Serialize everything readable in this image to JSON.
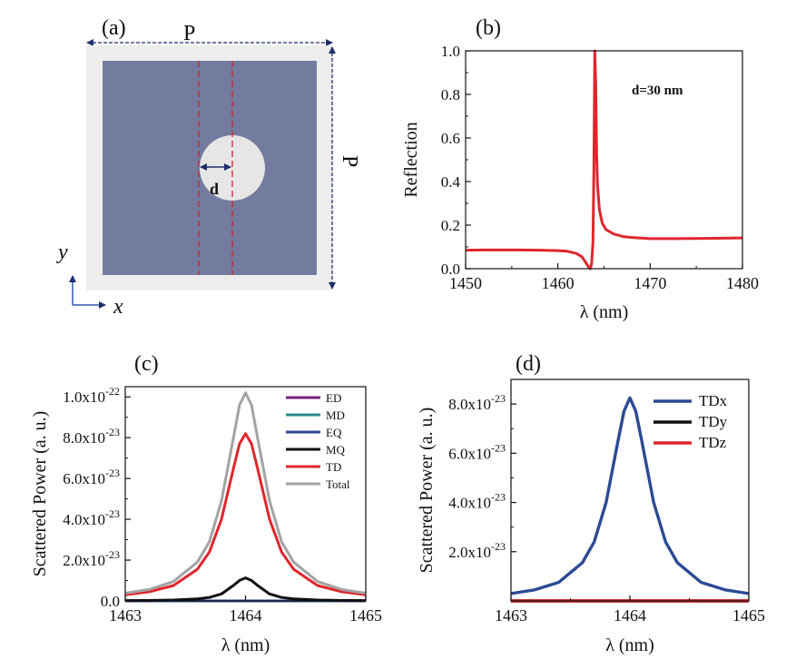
{
  "panels": {
    "a": {
      "label": "(a)",
      "period_label": "P",
      "diameter_label": "d",
      "period_side_label": "P",
      "axis_x": "x",
      "axis_y": "y"
    },
    "b": {
      "label": "(b)"
    },
    "c": {
      "label": "(c)"
    },
    "d": {
      "label": "(d)"
    }
  },
  "chart_data": [
    {
      "id": "b",
      "type": "line",
      "ylabel": "Reflection",
      "xlabel": "λ (nm)",
      "annotation": "d=30 nm",
      "xlim": [
        1450,
        1480
      ],
      "ylim": [
        0,
        1.0
      ],
      "xticks": [
        1450,
        1460,
        1470,
        1480
      ],
      "xtick_labels": [
        "1450",
        "1460",
        "1470",
        "1480"
      ],
      "yticks": [
        0,
        0.2,
        0.4,
        0.6,
        0.8,
        1.0
      ],
      "ytick_labels": [
        "0.0",
        "0.2",
        "0.4",
        "0.6",
        "0.8",
        "1.0"
      ],
      "series": [
        {
          "color": "#e0262d",
          "x": [
            1450,
            1452,
            1454,
            1456,
            1458,
            1460,
            1461,
            1462,
            1462.6,
            1463.0,
            1463.3,
            1463.5,
            1463.65,
            1463.8,
            1463.9,
            1464.0,
            1464.1,
            1464.2,
            1464.3,
            1464.5,
            1464.8,
            1465.2,
            1466,
            1467,
            1468,
            1470,
            1473,
            1476,
            1480
          ],
          "y": [
            0.085,
            0.086,
            0.086,
            0.086,
            0.085,
            0.083,
            0.08,
            0.07,
            0.055,
            0.03,
            0.01,
            0.0,
            0.02,
            0.12,
            0.45,
            1.0,
            0.85,
            0.52,
            0.38,
            0.27,
            0.21,
            0.18,
            0.16,
            0.148,
            0.143,
            0.138,
            0.138,
            0.139,
            0.141
          ]
        }
      ]
    },
    {
      "id": "c",
      "type": "line",
      "ylabel": "Scattered Power (a. u.)",
      "xlabel": "λ (nm)",
      "xlim": [
        1463,
        1465
      ],
      "ylim": [
        0,
        1.05e-22
      ],
      "xticks": [
        1463,
        1464,
        1465
      ],
      "xtick_labels": [
        "1463",
        "1464",
        "1465"
      ],
      "yticks": [
        0,
        2e-23,
        4e-23,
        6e-23,
        8e-23,
        1e-22
      ],
      "ytick_labels": [
        {
          "base": "0.0",
          "exp": ""
        },
        {
          "base": "2.0x10",
          "exp": "-23"
        },
        {
          "base": "4.0x10",
          "exp": "-23"
        },
        {
          "base": "6.0x10",
          "exp": "-23"
        },
        {
          "base": "8.0x10",
          "exp": "-23"
        },
        {
          "base": "1.0x10",
          "exp": "-22"
        }
      ],
      "legend_position": "top-right",
      "series": [
        {
          "name": "ED",
          "color": "#7b1f82",
          "x": [
            1463,
            1465
          ],
          "y": [
            0,
            0
          ]
        },
        {
          "name": "MD",
          "color": "#2b8a86",
          "x": [
            1463,
            1465
          ],
          "y": [
            0,
            0
          ]
        },
        {
          "name": "EQ",
          "color": "#2c4a94",
          "x": [
            1463,
            1465
          ],
          "y": [
            0,
            0
          ]
        },
        {
          "name": "MQ",
          "color": "#111111",
          "x": [
            1463,
            1463.2,
            1463.4,
            1463.6,
            1463.7,
            1463.8,
            1463.9,
            1463.95,
            1464,
            1464.05,
            1464.1,
            1464.2,
            1464.3,
            1464.4,
            1464.6,
            1464.8,
            1465
          ],
          "y": [
            1.5e-25,
            2.4e-25,
            4.4e-25,
            1e-24,
            1.7e-24,
            3.4e-24,
            7.6e-24,
            1e-23,
            1.13e-23,
            1e-23,
            7.6e-24,
            3.4e-24,
            1.7e-24,
            1e-24,
            4.4e-25,
            2.4e-25,
            1.5e-25
          ]
        },
        {
          "name": "TD",
          "color": "#e0262d",
          "x": [
            1463,
            1463.2,
            1463.4,
            1463.6,
            1463.7,
            1463.8,
            1463.9,
            1463.95,
            1464,
            1464.05,
            1464.1,
            1464.2,
            1464.3,
            1464.4,
            1464.6,
            1464.8,
            1465
          ],
          "y": [
            3e-24,
            4.5e-24,
            7.5e-24,
            1.55e-23,
            2.4e-23,
            4e-23,
            6.5e-23,
            7.7e-23,
            8.2e-23,
            7.7e-23,
            6.5e-23,
            4e-23,
            2.4e-23,
            1.55e-23,
            7.5e-24,
            4.5e-24,
            3e-24
          ]
        },
        {
          "name": "Total",
          "color": "#a3a3a3",
          "x": [
            1463,
            1463.2,
            1463.4,
            1463.6,
            1463.7,
            1463.8,
            1463.9,
            1463.95,
            1464,
            1464.05,
            1464.1,
            1464.2,
            1464.3,
            1464.4,
            1464.6,
            1464.8,
            1465
          ],
          "y": [
            3.8e-24,
            5.6e-24,
            9.5e-24,
            1.9e-23,
            2.9e-23,
            4.9e-23,
            8e-23,
            9.6e-23,
            1.02e-22,
            9.6e-23,
            8e-23,
            4.9e-23,
            2.9e-23,
            1.9e-23,
            9.5e-24,
            5.6e-24,
            3.8e-24
          ]
        }
      ]
    },
    {
      "id": "d",
      "type": "line",
      "ylabel": "Scattered Power (a. u.)",
      "xlabel": "λ (nm)",
      "xlim": [
        1463,
        1465
      ],
      "ylim": [
        0,
        9e-23
      ],
      "xticks": [
        1463,
        1464,
        1465
      ],
      "xtick_labels": [
        "1463",
        "1464",
        "1465"
      ],
      "yticks": [
        2e-23,
        4e-23,
        6e-23,
        8e-23
      ],
      "ytick_labels": [
        {
          "base": "2.0x10",
          "exp": "-23"
        },
        {
          "base": "4.0x10",
          "exp": "-23"
        },
        {
          "base": "6.0x10",
          "exp": "-23"
        },
        {
          "base": "8.0x10",
          "exp": "-23"
        }
      ],
      "legend_position": "top-right",
      "series": [
        {
          "name": "TDx",
          "color": "#2c4a94",
          "x": [
            1463,
            1463.2,
            1463.4,
            1463.6,
            1463.7,
            1463.8,
            1463.9,
            1463.95,
            1464,
            1464.05,
            1464.1,
            1464.2,
            1464.3,
            1464.4,
            1464.6,
            1464.8,
            1465
          ],
          "y": [
            3e-24,
            4.5e-24,
            7.5e-24,
            1.55e-23,
            2.4e-23,
            4e-23,
            6.5e-23,
            7.7e-23,
            8.25e-23,
            7.7e-23,
            6.5e-23,
            4e-23,
            2.4e-23,
            1.55e-23,
            7.5e-24,
            4.5e-24,
            3e-24
          ]
        },
        {
          "name": "TDy",
          "color": "#111111",
          "x": [
            1463,
            1465
          ],
          "y": [
            0,
            0
          ]
        },
        {
          "name": "TDz",
          "color": "#e0262d",
          "x": [
            1463,
            1465
          ],
          "y": [
            0,
            0
          ]
        }
      ]
    }
  ]
}
